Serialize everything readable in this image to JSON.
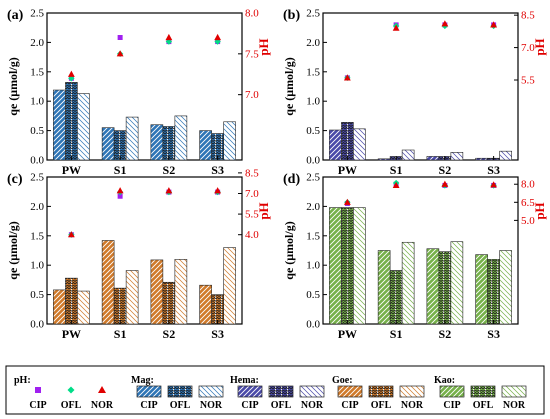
{
  "chart_data": [
    {
      "panel": "(a)",
      "type": "bar",
      "categories": [
        "PW",
        "S1",
        "S2",
        "S3"
      ],
      "ylabel": "qe (μmol/g)",
      "ylabel_right": "pH",
      "ylim": [
        0,
        2.5
      ],
      "ylim_right": [
        6.2,
        8.0
      ],
      "yticks": [
        "0.0",
        "0.5",
        "1.0",
        "1.5",
        "2.0",
        "2.5"
      ],
      "yticks_right": [
        "7.0",
        "7.5",
        "8.0"
      ],
      "mineral": "mag",
      "series": [
        {
          "name": "CIP",
          "values": [
            1.19,
            0.55,
            0.6,
            0.5
          ]
        },
        {
          "name": "OFL",
          "values": [
            1.32,
            0.5,
            0.57,
            0.45
          ]
        },
        {
          "name": "NOR",
          "values": [
            1.13,
            0.73,
            0.75,
            0.65
          ]
        }
      ],
      "ph": [
        {
          "name": "CIP",
          "values": [
            7.2,
            7.7,
            7.65,
            7.65
          ]
        },
        {
          "name": "OFL",
          "values": [
            7.2,
            7.5,
            7.65,
            7.65
          ]
        },
        {
          "name": "NOR",
          "values": [
            7.25,
            7.5,
            7.7,
            7.7
          ]
        }
      ]
    },
    {
      "panel": "(b)",
      "type": "bar",
      "categories": [
        "PW",
        "S1",
        "S2",
        "S3"
      ],
      "ylabel": "qe (μmol/g)",
      "ylabel_right": "pH",
      "ylim": [
        0,
        2.5
      ],
      "ylim_right": [
        1.8,
        8.6
      ],
      "yticks": [
        "0.0",
        "0.5",
        "1.0",
        "1.5",
        "2.0",
        "2.5"
      ],
      "yticks_right": [
        "5.5",
        "7.0",
        "8.5"
      ],
      "mineral": "hema",
      "series": [
        {
          "name": "CIP",
          "values": [
            0.51,
            0.02,
            0.06,
            0.03
          ]
        },
        {
          "name": "OFL",
          "values": [
            0.64,
            0.06,
            0.06,
            0.03
          ]
        },
        {
          "name": "NOR",
          "values": [
            0.53,
            0.17,
            0.13,
            0.15
          ]
        }
      ],
      "ph": [
        {
          "name": "CIP",
          "values": [
            5.6,
            8.05,
            8.05,
            8.05
          ]
        },
        {
          "name": "OFL",
          "values": [
            5.6,
            8.0,
            8.0,
            8.0
          ]
        },
        {
          "name": "NOR",
          "values": [
            5.6,
            7.9,
            8.1,
            8.05
          ]
        }
      ]
    },
    {
      "panel": "(c)",
      "type": "bar",
      "categories": [
        "PW",
        "S1",
        "S2",
        "S3"
      ],
      "ylabel": "qe (μmol/g)",
      "ylabel_right": "pH",
      "ylim": [
        0,
        2.5
      ],
      "ylim_right": [
        -2.5,
        8.2
      ],
      "yticks": [
        "0.0",
        "0.5",
        "1.0",
        "1.5",
        "2.0",
        "2.5"
      ],
      "yticks_right": [
        "4.0",
        "5.5",
        "7.0",
        "8.5"
      ],
      "mineral": "goe",
      "series": [
        {
          "name": "CIP",
          "values": [
            0.58,
            1.42,
            1.09,
            0.66
          ]
        },
        {
          "name": "OFL",
          "values": [
            0.78,
            0.61,
            0.71,
            0.5
          ]
        },
        {
          "name": "NOR",
          "values": [
            0.56,
            0.91,
            1.1,
            1.3
          ]
        }
      ],
      "ph": [
        {
          "name": "CIP",
          "values": [
            4.0,
            6.8,
            7.1,
            7.1
          ]
        },
        {
          "name": "OFL",
          "values": [
            4.0,
            7.1,
            7.1,
            7.1
          ]
        },
        {
          "name": "NOR",
          "values": [
            4.0,
            7.2,
            7.2,
            7.2
          ]
        }
      ]
    },
    {
      "panel": "(d)",
      "type": "bar",
      "categories": [
        "PW",
        "S1",
        "S2",
        "S3"
      ],
      "ylabel": "qe (μmol/g)",
      "ylabel_right": "pH",
      "ylim": [
        0,
        2.5
      ],
      "ylim_right": [
        -3.6,
        8.6
      ],
      "yticks": [
        "0.0",
        "0.5",
        "1.0",
        "1.5",
        "2.0",
        "2.5"
      ],
      "yticks_right": [
        "5.0",
        "6.5",
        "8.0"
      ],
      "mineral": "kao",
      "series": [
        {
          "name": "CIP",
          "values": [
            1.98,
            1.25,
            1.28,
            1.18
          ]
        },
        {
          "name": "OFL",
          "values": [
            1.98,
            0.91,
            1.23,
            1.1
          ]
        },
        {
          "name": "NOR",
          "values": [
            1.98,
            1.39,
            1.4,
            1.25
          ]
        }
      ],
      "ph": [
        {
          "name": "CIP",
          "values": [
            6.4,
            8.0,
            7.9,
            7.9
          ]
        },
        {
          "name": "OFL",
          "values": [
            6.5,
            8.1,
            7.9,
            7.9
          ]
        },
        {
          "name": "NOR",
          "values": [
            6.5,
            7.9,
            8.0,
            7.95
          ]
        }
      ]
    }
  ],
  "colors": {
    "mag": "#2e75b6",
    "hema": "#4a4aa8",
    "goe": "#d07a2a",
    "kao": "#76b04a",
    "ph_cip": "#a020f0",
    "ph_ofl": "#00dd88",
    "ph_nor": "#e00000"
  },
  "legend": {
    "ph_title": "pH:",
    "groups": [
      {
        "title": "Mag:",
        "mineral": "mag"
      },
      {
        "title": "Hema:",
        "mineral": "hema"
      },
      {
        "title": "Goe:",
        "mineral": "goe"
      },
      {
        "title": "Kao:",
        "mineral": "kao"
      }
    ],
    "labels": [
      "CIP",
      "OFL",
      "NOR"
    ]
  }
}
